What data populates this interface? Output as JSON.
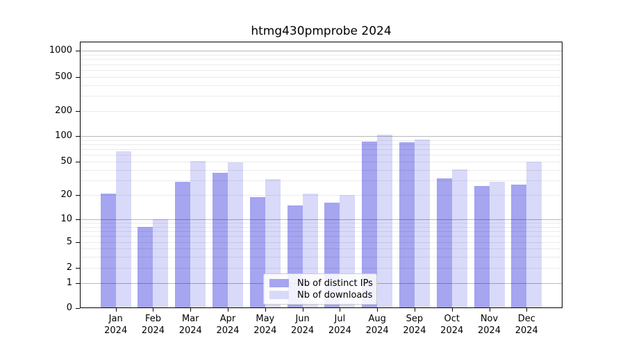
{
  "chart_data": {
    "type": "bar",
    "title": "htmg430pmprobe 2024",
    "categories": [
      "Jan 2024",
      "Feb 2024",
      "Mar 2024",
      "Apr 2024",
      "May 2024",
      "Jun 2024",
      "Jul 2024",
      "Aug 2024",
      "Sep 2024",
      "Oct 2024",
      "Nov 2024",
      "Dec 2024"
    ],
    "series": [
      {
        "name": "Nb of distinct IPs",
        "color": "#a5a5f0",
        "values": [
          21,
          8,
          29,
          37,
          19,
          15,
          16,
          86,
          84,
          32,
          26,
          27
        ]
      },
      {
        "name": "Nb of downloads",
        "color": "#d9d9fa",
        "values": [
          67,
          10,
          51,
          49,
          31,
          21,
          20,
          104,
          91,
          41,
          29,
          50
        ]
      }
    ],
    "y_axis": {
      "scale": "log-like with zero baseline",
      "tick_values": [
        0,
        1,
        2,
        5,
        10,
        20,
        50,
        100,
        200,
        500,
        1000
      ],
      "tick_labels": [
        "0",
        "1",
        "2",
        "5",
        "10",
        "20",
        "50",
        "100",
        "200",
        "500",
        "1000"
      ]
    },
    "legend": {
      "position": "lower center",
      "entries": [
        "Nb of distinct IPs",
        "Nb of downloads"
      ]
    },
    "grid": true
  },
  "colors": {
    "bar_dark": "#a5a5f0",
    "bar_light": "#d9d9fa",
    "grid_major": "rgba(0,0,0,0.28)",
    "grid_minor": "rgba(0,0,0,0.08)",
    "spine": "#000000",
    "text": "#000000",
    "legend_border": "#cccccc"
  }
}
